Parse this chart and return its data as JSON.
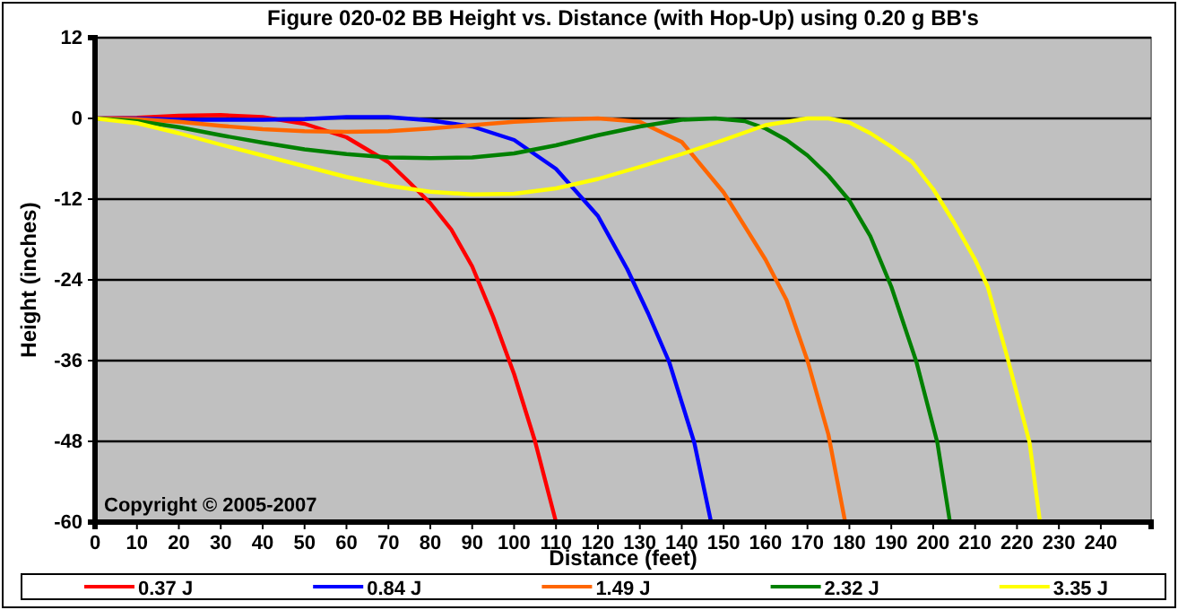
{
  "chart_data": {
    "type": "line",
    "title": "Figure 020-02  BB Height vs. Distance (with Hop-Up) using 0.20 g BB's",
    "xlabel": "Distance (feet)",
    "ylabel": "Height (inches)",
    "annotations": [
      "Copyright © 2005-2007"
    ],
    "xlim": [
      0,
      252
    ],
    "xticks": [
      0,
      10,
      20,
      30,
      40,
      50,
      60,
      70,
      80,
      90,
      100,
      110,
      120,
      130,
      140,
      150,
      160,
      170,
      180,
      190,
      200,
      210,
      220,
      230,
      240
    ],
    "ylim": [
      -60,
      12
    ],
    "yticks": [
      -60,
      -48,
      -36,
      -24,
      -12,
      0,
      12
    ],
    "grid": "y",
    "legend": "bottom",
    "marker": "none",
    "line_style": "solid",
    "series": [
      {
        "name": "0.37 J",
        "color": "#ff0000",
        "x": [
          0,
          10,
          20,
          30,
          40,
          50,
          60,
          70,
          75,
          80,
          85,
          90,
          95,
          100,
          105,
          110
        ],
        "values": [
          0,
          0.1,
          0.4,
          0.5,
          0.2,
          -0.8,
          -2.8,
          -6.5,
          -9.5,
          -12.6,
          -16.5,
          -22,
          -29.5,
          -38,
          -48,
          -60
        ]
      },
      {
        "name": "0.84 J",
        "color": "#0000ff",
        "x": [
          0,
          10,
          20,
          30,
          40,
          50,
          60,
          70,
          80,
          90,
          100,
          110,
          120,
          127,
          132,
          137,
          143,
          147
        ],
        "values": [
          0,
          0,
          -0.2,
          -0.2,
          -0.2,
          -0.1,
          0.2,
          0.2,
          -0.3,
          -1.2,
          -3.2,
          -7.5,
          -14.5,
          -22.4,
          -29,
          -36.2,
          -48.2,
          -60
        ]
      },
      {
        "name": "1.49 J",
        "color": "#ff6600",
        "x": [
          0,
          10,
          20,
          30,
          40,
          50,
          60,
          70,
          80,
          90,
          100,
          110,
          120,
          130,
          140,
          150,
          160,
          165,
          170,
          175,
          179
        ],
        "values": [
          0,
          -0.1,
          -0.5,
          -1.1,
          -1.6,
          -1.9,
          -2,
          -1.9,
          -1.5,
          -1,
          -0.5,
          -0.2,
          0,
          -0.5,
          -3.5,
          -11,
          -21,
          -27,
          -36,
          -47,
          -60
        ]
      },
      {
        "name": "2.32 J",
        "color": "#008000",
        "x": [
          0,
          10,
          20,
          30,
          40,
          50,
          60,
          70,
          80,
          90,
          100,
          110,
          120,
          130,
          140,
          148,
          155,
          160,
          165,
          170,
          175,
          180,
          185,
          190,
          196,
          201,
          204
        ],
        "values": [
          0,
          -0.4,
          -1.3,
          -2.5,
          -3.6,
          -4.6,
          -5.3,
          -5.8,
          -5.9,
          -5.8,
          -5.2,
          -4,
          -2.5,
          -1.2,
          -0.2,
          0,
          -0.4,
          -1.5,
          -3.2,
          -5.5,
          -8.5,
          -12.2,
          -17.5,
          -25,
          -36.2,
          -48.2,
          -60
        ]
      },
      {
        "name": "3.35 J",
        "color": "#ffff00",
        "x": [
          0,
          10,
          20,
          30,
          40,
          50,
          60,
          70,
          80,
          90,
          100,
          110,
          120,
          130,
          140,
          150,
          160,
          170,
          175,
          180,
          185,
          190,
          195,
          200,
          205,
          210,
          213,
          218,
          223,
          225.5
        ],
        "values": [
          0,
          -0.7,
          -2.2,
          -3.9,
          -5.5,
          -7.1,
          -8.7,
          -10,
          -10.9,
          -11.3,
          -11.2,
          -10.4,
          -9,
          -7.2,
          -5.3,
          -3.2,
          -1,
          0,
          0,
          -0.6,
          -2.2,
          -4.2,
          -6.5,
          -10.5,
          -15.5,
          -21,
          -25,
          -36.2,
          -48.2,
          -60
        ]
      }
    ]
  }
}
